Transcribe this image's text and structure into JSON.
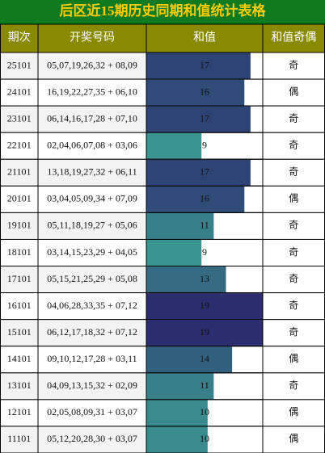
{
  "header": {
    "title": "后区近15期历史同期和值统计表格"
  },
  "table": {
    "columns": [
      "期次",
      "开奖号码",
      "和值",
      "和值奇偶"
    ],
    "bar_colors": [
      "#3a9490",
      "#2a2d6e"
    ],
    "rows": [
      [
        "25101",
        "05,07,19,26,32 + 08,09",
        17,
        "奇"
      ],
      [
        "24101",
        "16,19,22,27,35 + 06,10",
        16,
        "偶"
      ],
      [
        "23101",
        "06,14,16,17,28 + 07,10",
        17,
        "奇"
      ],
      [
        "22101",
        "02,04,06,07,08 + 03,06",
        9,
        "奇"
      ],
      [
        "21101",
        "13,18,19,27,32 + 06,11",
        17,
        "奇"
      ],
      [
        "20101",
        "03,04,05,09,34 + 07,09",
        16,
        "偶"
      ],
      [
        "19101",
        "05,11,18,19,27 + 05,06",
        11,
        "奇"
      ],
      [
        "18101",
        "03,14,15,23,29 + 04,05",
        9,
        "奇"
      ],
      [
        "17101",
        "05,15,21,25,29 + 05,08",
        13,
        "奇"
      ],
      [
        "16101",
        "04,06,28,33,35 + 07,12",
        19,
        "奇"
      ],
      [
        "15101",
        "06,12,17,18,32 + 07,12",
        19,
        "奇"
      ],
      [
        "14101",
        "09,10,12,17,28 + 03,11",
        14,
        "偶"
      ],
      [
        "13101",
        "04,09,13,15,32 + 02,09",
        11,
        "奇"
      ],
      [
        "12101",
        "02,05,08,09,31 + 03,07",
        10,
        "偶"
      ],
      [
        "11101",
        "05,12,20,28,30 + 03,07",
        10,
        "偶"
      ]
    ]
  }
}
